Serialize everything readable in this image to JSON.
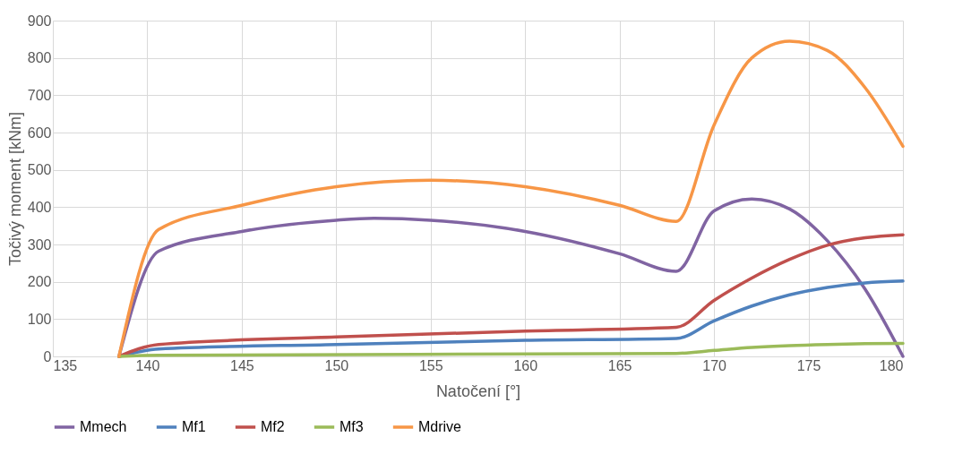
{
  "chart_data": {
    "type": "line",
    "xlabel": "Natočení [°]",
    "ylabel": "Točivý moment [kNm]",
    "xlim": [
      135,
      180
    ],
    "xticks": [
      135,
      140,
      145,
      150,
      155,
      160,
      165,
      170,
      175,
      180
    ],
    "ylim": [
      0,
      900
    ],
    "yticks": [
      0,
      100,
      200,
      300,
      400,
      500,
      600,
      700,
      800,
      900
    ],
    "grid": true,
    "legend": "bottom",
    "marker": "none",
    "line_style": "solid",
    "series": [
      {
        "name": "Mmech",
        "color": "#8064a2",
        "x": [
          138.5,
          140.6,
          145,
          150,
          152,
          155,
          160,
          165,
          168,
          170,
          172,
          174,
          176,
          178,
          180
        ],
        "values": [
          0,
          282,
          335,
          365,
          370,
          365,
          335,
          275,
          228,
          390,
          422,
          395,
          310,
          180,
          0
        ]
      },
      {
        "name": "Mf1",
        "color": "#4f81bd",
        "x": [
          138.5,
          140.6,
          150,
          160,
          168,
          170,
          172,
          174,
          176,
          178,
          180
        ],
        "values": [
          0,
          20,
          32,
          43,
          48,
          95,
          135,
          165,
          185,
          197,
          202
        ]
      },
      {
        "name": "Mf2",
        "color": "#c0504d",
        "x": [
          138.5,
          140.6,
          150,
          160,
          168,
          170,
          172,
          174,
          176,
          178,
          180
        ],
        "values": [
          0,
          32,
          52,
          68,
          78,
          150,
          210,
          260,
          298,
          318,
          326
        ]
      },
      {
        "name": "Mf3",
        "color": "#9bbb59",
        "x": [
          138.5,
          140.6,
          168,
          170,
          172,
          174,
          176,
          178,
          180
        ],
        "values": [
          0,
          3,
          8,
          16,
          24,
          29,
          32,
          34,
          35
        ]
      },
      {
        "name": "Mdrive",
        "color": "#f79646",
        "x": [
          138.5,
          140.6,
          145,
          150,
          155,
          160,
          165,
          168,
          170,
          172,
          174,
          176,
          178,
          180
        ],
        "values": [
          0,
          340,
          405,
          455,
          472,
          455,
          405,
          362,
          620,
          800,
          845,
          820,
          720,
          563
        ]
      }
    ]
  }
}
